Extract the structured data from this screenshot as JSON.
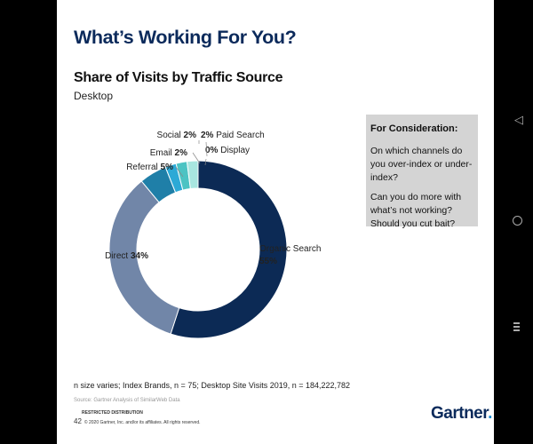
{
  "slide": {
    "title": "What’s Working For You?",
    "subtitle": "Share of Visits by Traffic Source",
    "device": "Desktop",
    "consideration": {
      "heading": "For Consideration:",
      "question1": "On which channels do you over-index or under-index?",
      "question2": "Can you do more with what’s not working? Should you cut bait?"
    },
    "footnote": "n size varies; Index Brands, n = 75; Desktop Site Visits 2019, n = 184,222,782",
    "source": "Source: Gartner Analysis of SimilarWeb Data",
    "restricted": "RESTRICTED DISTRIBUTION",
    "page_number": "42",
    "copyright": "© 2020 Gartner, Inc. and/or its affiliates. All rights reserved.",
    "logo": "Gartner",
    "logo_dot": "."
  },
  "chart_data": {
    "type": "pie",
    "style": "donut",
    "categories": [
      "Organic Search",
      "Direct",
      "Referral",
      "Email",
      "Social",
      "Paid Search",
      "Display"
    ],
    "values": [
      55,
      34,
      5,
      2,
      2,
      2,
      0
    ],
    "value_labels": [
      "55%",
      "34%",
      "5%",
      "2%",
      "2%",
      "2%",
      "0%"
    ],
    "colors": [
      "#0c2a55",
      "#7186a8",
      "#1f7fa8",
      "#2ca9d6",
      "#4cc3c3",
      "#a8e6e0",
      "#4d4d4d"
    ]
  }
}
